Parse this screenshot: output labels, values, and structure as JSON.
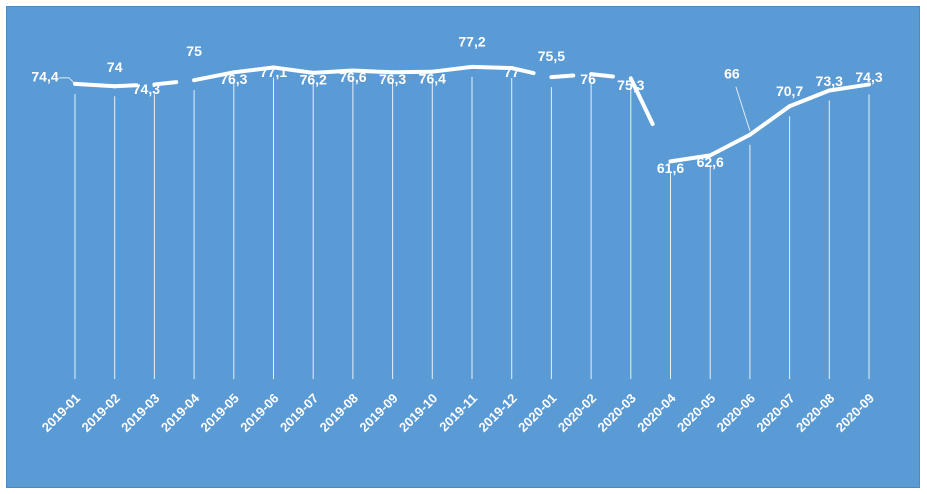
{
  "chart_data": {
    "type": "line",
    "title": "",
    "xlabel": "",
    "ylabel": "",
    "categories": [
      "2019-01",
      "2019-02",
      "2019-03",
      "2019-04",
      "2019-05",
      "2019-06",
      "2019-07",
      "2019-08",
      "2019-09",
      "2019-10",
      "2019-11",
      "2019-12",
      "2020-01",
      "2020-02",
      "2020-03",
      "2020-04",
      "2020-05",
      "2020-06",
      "2020-07",
      "2020-08",
      "2020-09"
    ],
    "series": [
      {
        "values": [
          74.4,
          74,
          74.3,
          75,
          76.3,
          77.1,
          76.2,
          76.6,
          76.3,
          76.4,
          77.2,
          77,
          75.5,
          76,
          75.3,
          61.6,
          62.6,
          66,
          70.7,
          73.3,
          74.3
        ],
        "labels": [
          "74,4",
          "74",
          "74,3",
          "75",
          "76,3",
          "77,1",
          "76,2",
          "76,6",
          "76,3",
          "76,4",
          "77,2",
          "77",
          "75,5",
          "76",
          "75,3",
          "61,6",
          "62,6",
          "66",
          "70,7",
          "73,3",
          "74,3"
        ]
      }
    ],
    "drop_lines": true,
    "grid": false,
    "legend": "none",
    "colors": {
      "background": "#5b9bd5",
      "line": "#ffffff",
      "text": "#ffffff"
    }
  }
}
